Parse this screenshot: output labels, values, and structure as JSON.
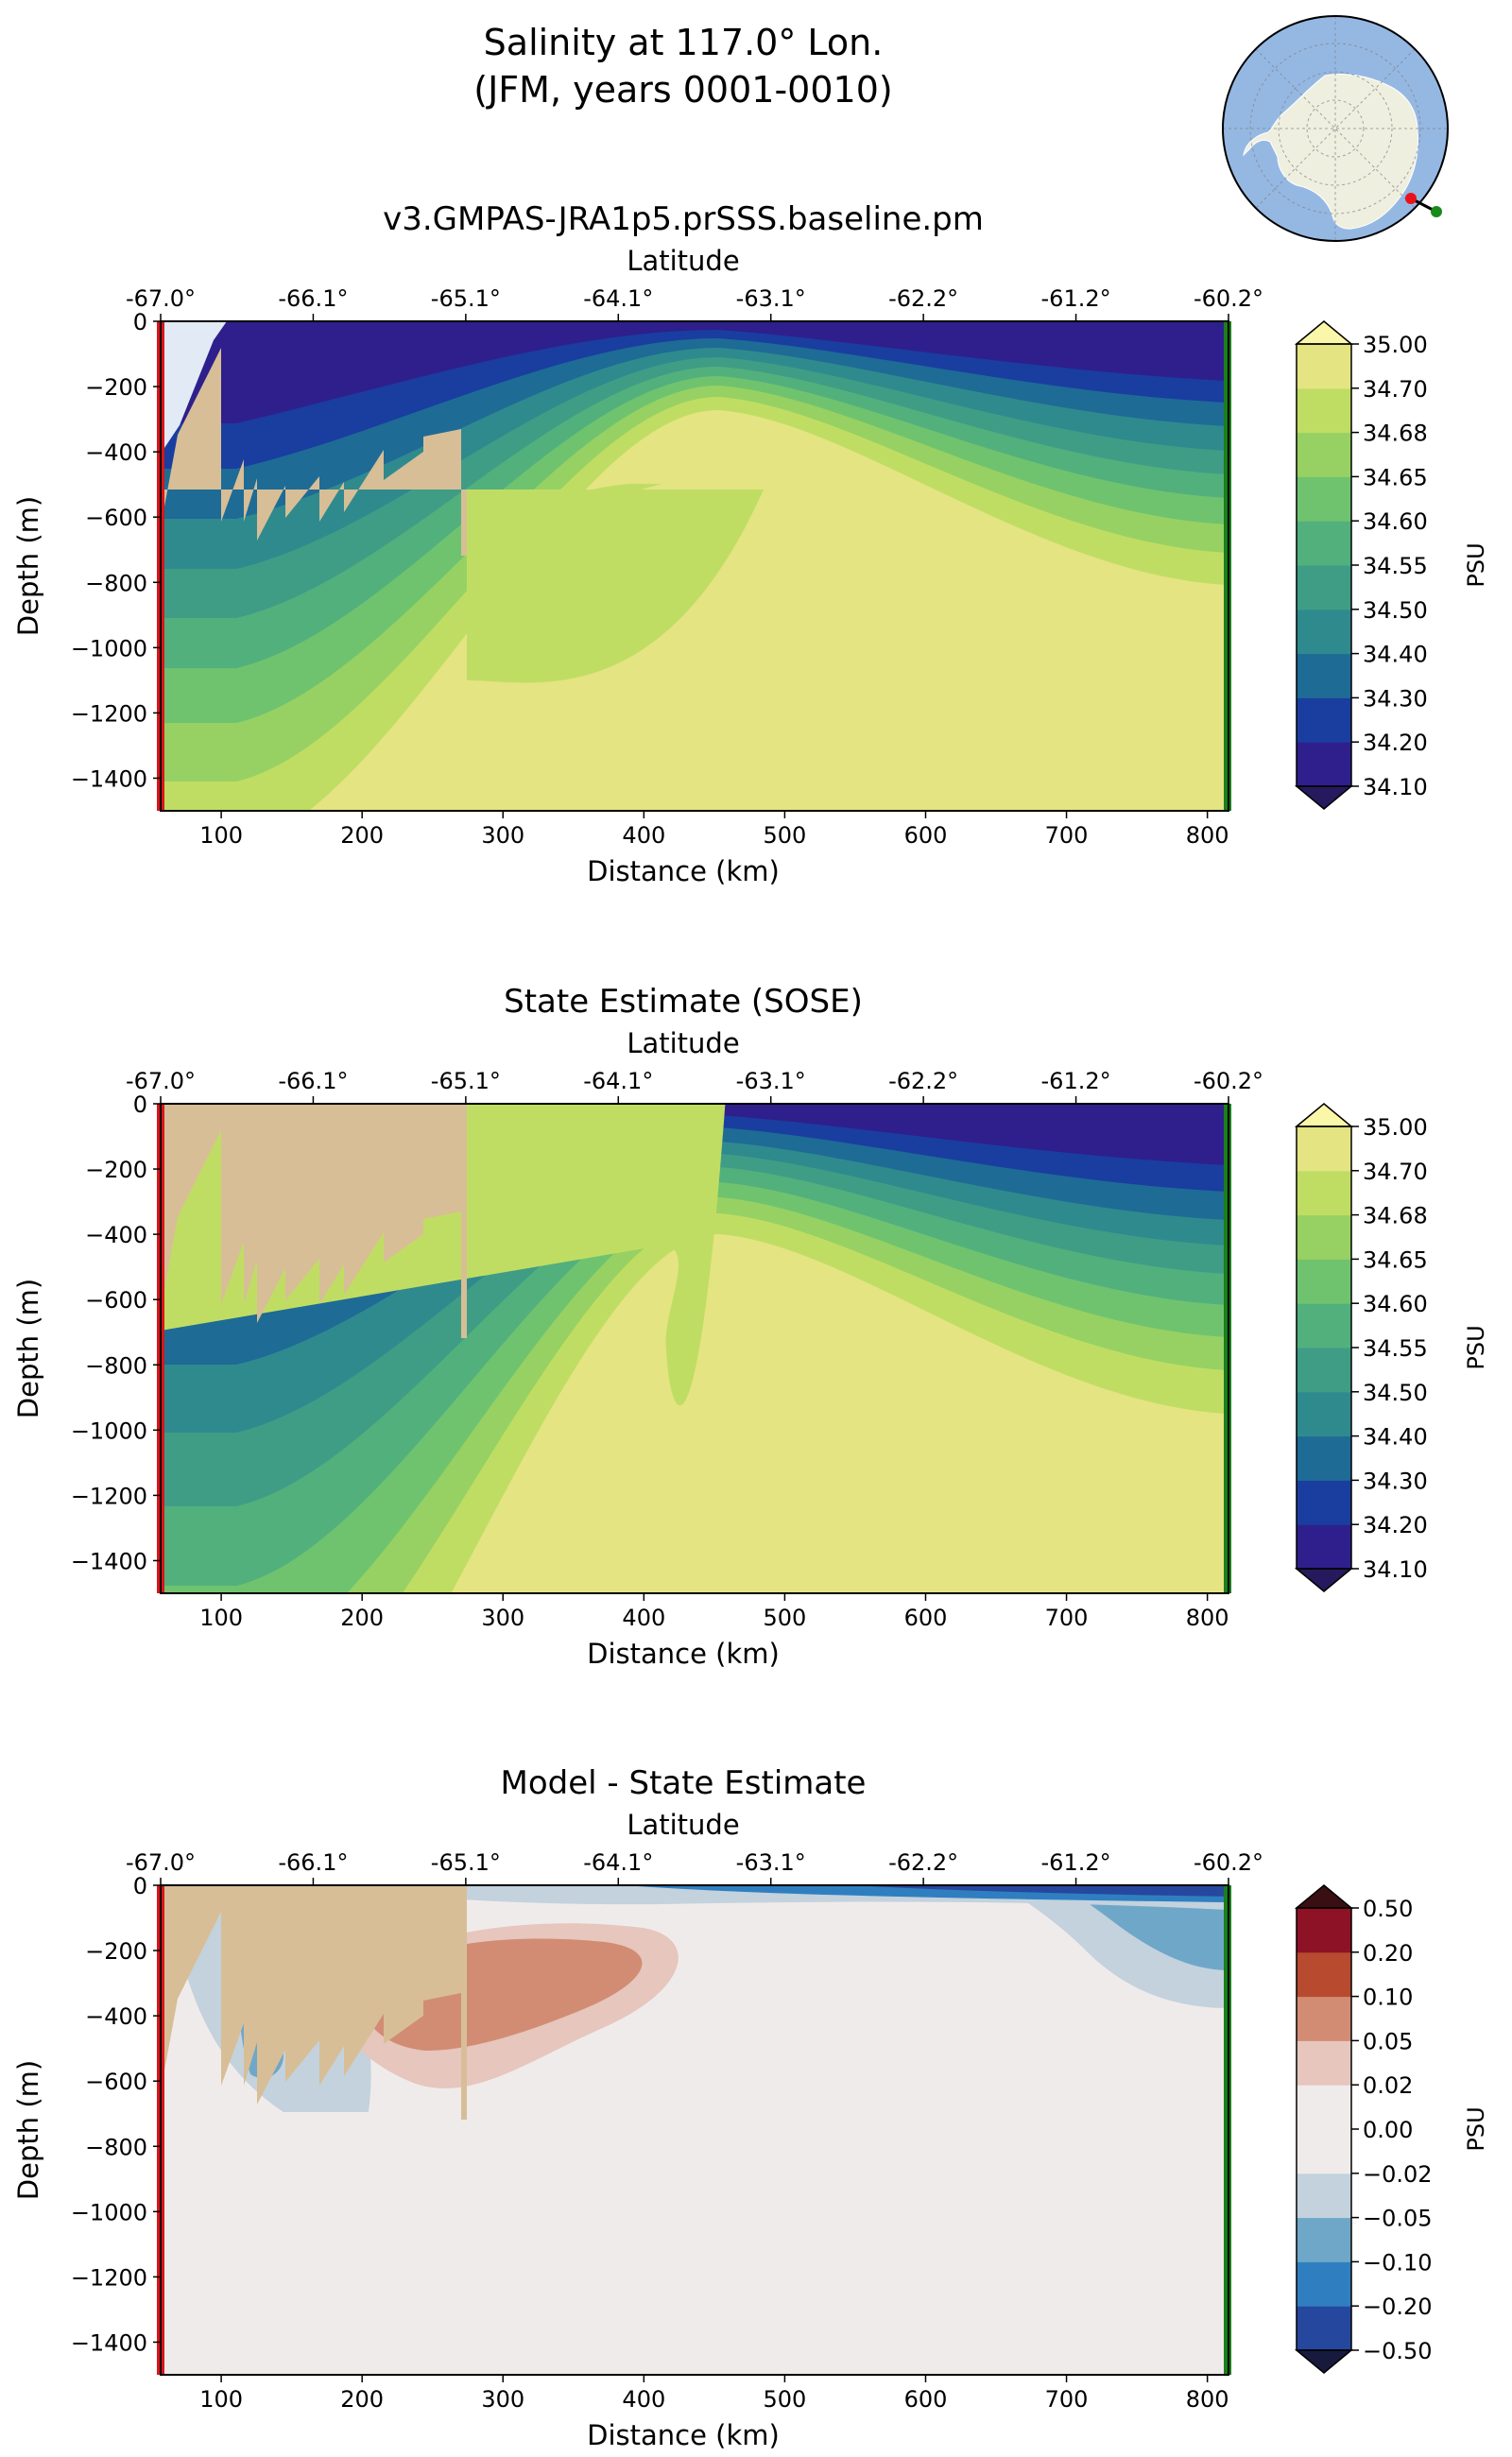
{
  "figure": {
    "title_line1": "Salinity at 117.0° Lon.",
    "title_line2": "(JFM, years 0001-0010)"
  },
  "inset_map": {
    "region": "Antarctica",
    "ocean_color": "#95b8e3",
    "land_color": "#efefe0",
    "section_start_color": "#e8131a",
    "section_end_color": "#1a8a1a"
  },
  "colors": {
    "bathymetry": "#d7be96",
    "ice_shelf": "#e2eaf6",
    "start_marker": "#d9151b",
    "end_marker": "#1b7f1b"
  },
  "chart_data": [
    {
      "type": "contourf",
      "title": "v3.GMPAS-JRA1p5.prSSS.baseline.pm",
      "xlabel": "Distance (km)",
      "ylabel": "Depth (m)",
      "top_xlabel": "Latitude",
      "x_ticks": [
        "100",
        "200",
        "300",
        "400",
        "500",
        "600",
        "700",
        "800"
      ],
      "y_ticks": [
        "0",
        "−200",
        "−400",
        "−600",
        "−800",
        "−1000",
        "−1200",
        "−1400"
      ],
      "lat_ticks": [
        "-67.0°",
        "-66.1°",
        "-65.1°",
        "-64.1°",
        "-63.1°",
        "-62.2°",
        "-61.2°",
        "-60.2°"
      ],
      "xlim": [
        57,
        815
      ],
      "ylim": [
        -1500,
        0
      ],
      "colorbar": {
        "label": "PSU",
        "ticks": [
          "34.10",
          "34.20",
          "34.30",
          "34.40",
          "34.50",
          "34.55",
          "34.60",
          "34.65",
          "34.68",
          "34.70",
          "35.00"
        ],
        "colors": [
          "#2e1f8c",
          "#1a3da0",
          "#1e6b96",
          "#2f8a8e",
          "#3f9d86",
          "#52b07d",
          "#6fc36f",
          "#97d163",
          "#c0dd63",
          "#e4e482"
        ],
        "under_color": "#27195e",
        "over_color": "#fbf7a8"
      }
    },
    {
      "type": "contourf",
      "title": "State Estimate (SOSE)",
      "xlabel": "Distance (km)",
      "ylabel": "Depth (m)",
      "top_xlabel": "Latitude",
      "x_ticks": [
        "100",
        "200",
        "300",
        "400",
        "500",
        "600",
        "700",
        "800"
      ],
      "y_ticks": [
        "0",
        "−200",
        "−400",
        "−600",
        "−800",
        "−1000",
        "−1200",
        "−1400"
      ],
      "lat_ticks": [
        "-67.0°",
        "-66.1°",
        "-65.1°",
        "-64.1°",
        "-63.1°",
        "-62.2°",
        "-61.2°",
        "-60.2°"
      ],
      "xlim": [
        57,
        815
      ],
      "ylim": [
        -1500,
        0
      ],
      "colorbar": {
        "label": "PSU",
        "ticks": [
          "34.10",
          "34.20",
          "34.30",
          "34.40",
          "34.50",
          "34.55",
          "34.60",
          "34.65",
          "34.68",
          "34.70",
          "35.00"
        ],
        "colors": [
          "#2e1f8c",
          "#1a3da0",
          "#1e6b96",
          "#2f8a8e",
          "#3f9d86",
          "#52b07d",
          "#6fc36f",
          "#97d163",
          "#c0dd63",
          "#e4e482"
        ],
        "under_color": "#27195e",
        "over_color": "#fbf7a8"
      }
    },
    {
      "type": "contourf",
      "title": "Model - State Estimate",
      "xlabel": "Distance (km)",
      "ylabel": "Depth (m)",
      "top_xlabel": "Latitude",
      "x_ticks": [
        "100",
        "200",
        "300",
        "400",
        "500",
        "600",
        "700",
        "800"
      ],
      "y_ticks": [
        "0",
        "−200",
        "−400",
        "−600",
        "−800",
        "−1000",
        "−1200",
        "−1400"
      ],
      "lat_ticks": [
        "-67.0°",
        "-66.1°",
        "-65.1°",
        "-64.1°",
        "-63.1°",
        "-62.2°",
        "-61.2°",
        "-60.2°"
      ],
      "xlim": [
        57,
        815
      ],
      "ylim": [
        -1500,
        0
      ],
      "colorbar": {
        "label": "PSU",
        "ticks": [
          "−0.50",
          "−0.20",
          "−0.10",
          "−0.05",
          "−0.02",
          "0.00",
          "0.02",
          "0.05",
          "0.10",
          "0.20",
          "0.50"
        ],
        "colors": [
          "#26479e",
          "#2f7fc0",
          "#6fa7c9",
          "#c3d2dd",
          "#f0ebeb",
          "#f0ebeb",
          "#e6c6bd",
          "#d28c73",
          "#b84a2f",
          "#8e1225"
        ],
        "under_color": "#171a3d",
        "over_color": "#3a0f14"
      }
    }
  ]
}
